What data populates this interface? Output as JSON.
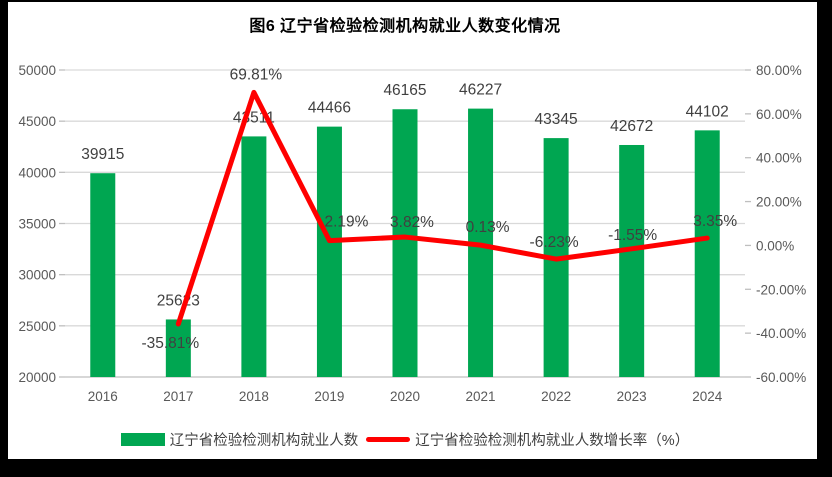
{
  "title": "图6 辽宁省检验检测机构就业人数变化情况",
  "colors": {
    "bar": "#00A651",
    "line": "#FF0000",
    "grid": "#D9D9D9",
    "axis_line": "#BFBFBF",
    "axis_text": "#595959",
    "label_text": "#404040",
    "frame": "#000000",
    "background": "#FFFFFF"
  },
  "legend": [
    {
      "label": "辽宁省检验检测机构就业人数",
      "type": "bar",
      "color": "#00A651"
    },
    {
      "label": "辽宁省检验检测机构就业人数增长率（%）",
      "type": "line",
      "color": "#FF0000"
    }
  ],
  "chart_data": {
    "type": "bar+line combo",
    "categories": [
      "2016",
      "2017",
      "2018",
      "2019",
      "2020",
      "2021",
      "2022",
      "2023",
      "2024"
    ],
    "series": [
      {
        "name": "辽宁省检验检测机构就业人数",
        "type": "bar",
        "axis": "left",
        "values": [
          39915,
          25623,
          43511,
          44466,
          46165,
          46227,
          43345,
          42672,
          44102
        ],
        "labels": [
          "39915",
          "25623",
          "43511",
          "44466",
          "46165",
          "46227",
          "43345",
          "42672",
          "44102"
        ]
      },
      {
        "name": "辽宁省检验检测机构就业人数增长率（%）",
        "type": "line",
        "axis": "right",
        "values": [
          null,
          -35.81,
          69.81,
          2.19,
          3.82,
          0.13,
          -6.23,
          -1.55,
          3.35
        ],
        "labels": [
          null,
          "-35.81%",
          "69.81%",
          "2.19%",
          "3.82%",
          "0.13%",
          "-6.23%",
          "-1.55%",
          "3.35%"
        ]
      }
    ],
    "left_axis": {
      "min": 20000,
      "max": 50000,
      "step": 5000,
      "ticks": [
        "50000",
        "45000",
        "40000",
        "35000",
        "30000",
        "25000",
        "20000"
      ]
    },
    "right_axis": {
      "min": -60,
      "max": 80,
      "step": 20,
      "ticks": [
        "80.00%",
        "60.00%",
        "40.00%",
        "20.00%",
        "0.00%",
        "-20.00%",
        "-40.00%",
        "-60.00%"
      ]
    },
    "grid": "horizontal",
    "legend_position": "bottom"
  }
}
